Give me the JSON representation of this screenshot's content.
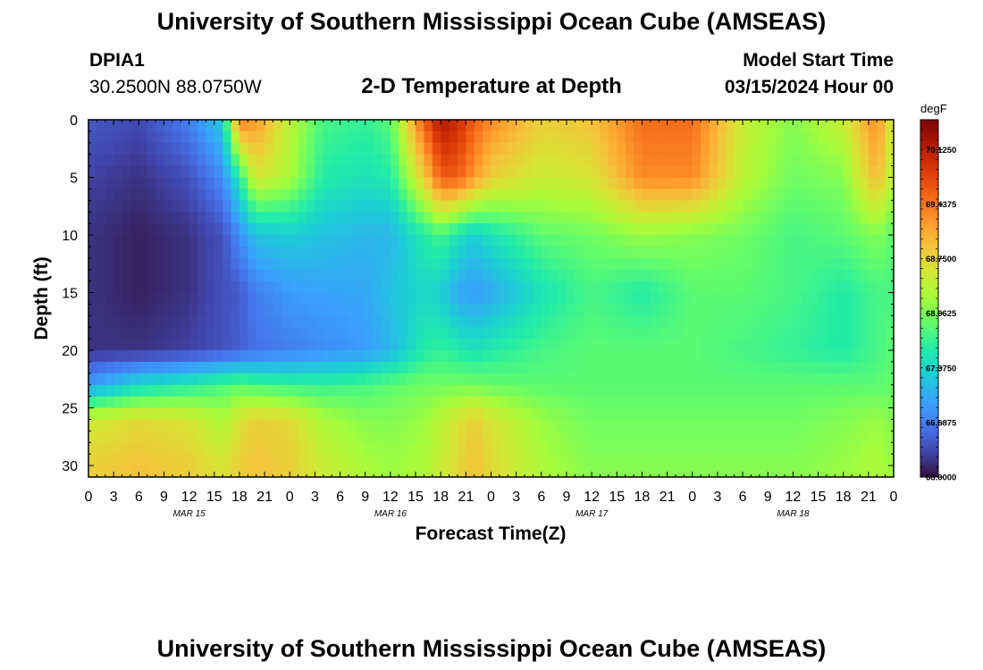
{
  "header": {
    "title": "University of Southern Mississippi Ocean Cube (AMSEAS)",
    "station": "DPIA1",
    "coords": "30.2500N  88.0750W",
    "subtitle": "2-D Temperature at Depth",
    "model_label": "Model Start Time",
    "model_time": "03/15/2024 Hour 00"
  },
  "footer": {
    "title": "University of Southern Mississippi Ocean Cube (AMSEAS)"
  },
  "chart_data": {
    "type": "heatmap",
    "title": "2-D Temperature at Depth",
    "xlabel": "Forecast Time(Z)",
    "ylabel": "Depth (ft)",
    "x_tick_labels": [
      "0",
      "3",
      "6",
      "9",
      "12",
      "15",
      "18",
      "21",
      "0",
      "3",
      "6",
      "9",
      "12",
      "15",
      "18",
      "21",
      "0",
      "3",
      "6",
      "9",
      "12",
      "15",
      "18",
      "21",
      "0",
      "3",
      "6",
      "9",
      "12",
      "15",
      "18",
      "21",
      "0"
    ],
    "x_range_hours": [
      0,
      96
    ],
    "day_labels": [
      {
        "label": "MAR 15",
        "center_hour": 12
      },
      {
        "label": "MAR 16",
        "center_hour": 36
      },
      {
        "label": "MAR 17",
        "center_hour": 60
      },
      {
        "label": "MAR 18",
        "center_hour": 84
      }
    ],
    "y_ticks": [
      0,
      5,
      10,
      15,
      20,
      25,
      30
    ],
    "y_range_ft": [
      0,
      31
    ],
    "colorbar": {
      "unit": "degF",
      "min": 66.0,
      "max": 70.5,
      "labels": [
        "70.1250",
        "69.4375",
        "68.7500",
        "68.0625",
        "67.3750",
        "66.6875",
        "66.0000"
      ],
      "label_values": [
        70.125,
        69.4375,
        68.75,
        68.0625,
        67.375,
        66.6875,
        66.0
      ]
    },
    "depths_ft": [
      0,
      5,
      10,
      15,
      20,
      23,
      26,
      30
    ],
    "hours": [
      0,
      6,
      12,
      16,
      18,
      20,
      24,
      28,
      33,
      36,
      40,
      42,
      44,
      46,
      48,
      54,
      60,
      66,
      72,
      78,
      84,
      90,
      94,
      96
    ],
    "temperatures_degF": [
      [
        66.45,
        66.35,
        66.7,
        67.3,
        69.4,
        69.2,
        68.4,
        67.8,
        67.7,
        67.9,
        69.6,
        70.2,
        70.0,
        69.6,
        69.3,
        68.8,
        68.9,
        69.5,
        69.5,
        68.5,
        68.1,
        68.5,
        69.3,
        68.4
      ],
      [
        66.3,
        66.2,
        66.4,
        66.8,
        67.6,
        68.6,
        68.3,
        67.6,
        67.5,
        67.6,
        68.8,
        69.6,
        69.6,
        69.2,
        68.8,
        68.5,
        68.6,
        69.3,
        69.3,
        68.4,
        68.0,
        68.1,
        69.0,
        68.3
      ],
      [
        66.2,
        66.1,
        66.2,
        66.4,
        66.8,
        67.2,
        67.3,
        67.2,
        67.1,
        67.1,
        67.6,
        67.8,
        67.5,
        67.3,
        67.5,
        67.9,
        68.0,
        68.2,
        68.1,
        68.0,
        67.8,
        67.9,
        68.1,
        67.9
      ],
      [
        66.2,
        66.1,
        66.2,
        66.4,
        66.45,
        66.7,
        66.9,
        66.95,
        67.0,
        67.2,
        67.4,
        67.3,
        67.0,
        66.9,
        67.0,
        67.5,
        67.8,
        67.6,
        67.9,
        67.9,
        67.8,
        67.6,
        67.8,
        67.8
      ],
      [
        66.2,
        66.2,
        66.3,
        66.4,
        66.5,
        66.6,
        66.7,
        66.8,
        66.9,
        67.1,
        67.6,
        67.7,
        67.6,
        67.5,
        67.6,
        67.8,
        67.9,
        67.9,
        67.9,
        67.8,
        67.7,
        67.6,
        67.8,
        67.9
      ],
      [
        66.9,
        67.4,
        67.6,
        67.8,
        67.9,
        67.8,
        67.7,
        67.7,
        67.8,
        67.9,
        68.0,
        68.0,
        68.0,
        68.0,
        67.95,
        67.9,
        67.9,
        67.9,
        67.9,
        67.9,
        67.9,
        67.9,
        67.9,
        67.95
      ],
      [
        68.5,
        68.7,
        68.6,
        68.3,
        68.6,
        68.8,
        68.7,
        68.3,
        68.1,
        68.1,
        68.2,
        68.4,
        68.6,
        68.8,
        68.6,
        68.2,
        68.0,
        68.0,
        68.0,
        68.0,
        68.0,
        68.1,
        68.2,
        68.1
      ],
      [
        68.8,
        68.9,
        68.8,
        68.6,
        68.8,
        68.9,
        68.8,
        68.5,
        68.3,
        68.2,
        68.3,
        68.5,
        68.7,
        68.9,
        68.7,
        68.3,
        68.1,
        68.1,
        68.1,
        68.1,
        68.1,
        68.2,
        68.3,
        68.2
      ]
    ]
  }
}
